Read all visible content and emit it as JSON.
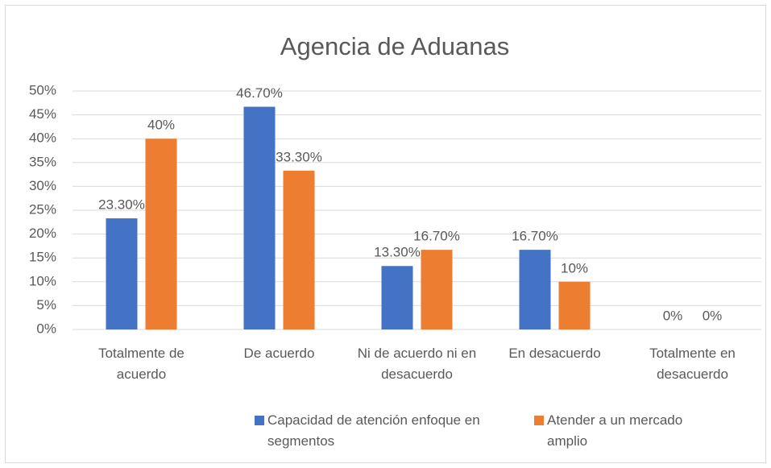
{
  "chart_data": {
    "type": "bar",
    "title": "Agencia de Aduanas",
    "categories": [
      "Totalmente de acuerdo",
      "De acuerdo",
      "Ni de acuerdo ni en desacuerdo",
      "En desacuerdo",
      "Totalmente en desacuerdo"
    ],
    "series": [
      {
        "name": "Capacidad de atención enfoque en segmentos",
        "color": "#4472c4",
        "values": [
          23.3,
          46.7,
          13.3,
          16.7,
          0
        ],
        "value_labels": [
          "23.30%",
          "46.70%",
          "13.30%",
          "16.70%",
          "0%"
        ]
      },
      {
        "name": "Atender a un mercado amplio",
        "color": "#ed7d31",
        "values": [
          40,
          33.3,
          16.7,
          10,
          0
        ],
        "value_labels": [
          "40%",
          "33.30%",
          "16.70%",
          "10%",
          "0%"
        ]
      }
    ],
    "ylim": [
      0,
      50
    ],
    "yticks": [
      {
        "value": 0,
        "label": "0%"
      },
      {
        "value": 5,
        "label": "5%"
      },
      {
        "value": 10,
        "label": "10%"
      },
      {
        "value": 15,
        "label": "15%"
      },
      {
        "value": 20,
        "label": "20%"
      },
      {
        "value": 25,
        "label": "25%"
      },
      {
        "value": 30,
        "label": "30%"
      },
      {
        "value": 35,
        "label": "35%"
      },
      {
        "value": 40,
        "label": "40%"
      },
      {
        "value": 45,
        "label": "45%"
      },
      {
        "value": 50,
        "label": "50%"
      }
    ],
    "grid": true,
    "legend": "bottom"
  }
}
